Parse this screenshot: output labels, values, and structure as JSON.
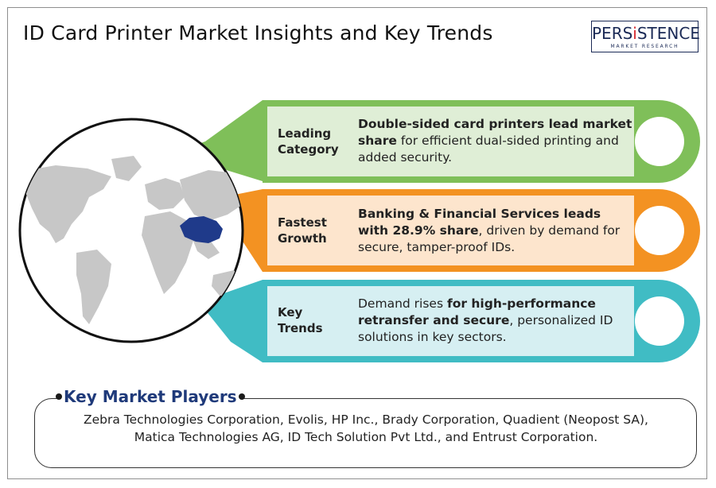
{
  "title": "ID Card Printer Market Insights and Key Trends",
  "logo": {
    "word_part1": "PERS",
    "word_accent": "i",
    "word_part2": "STENCE",
    "subtitle": "MARKET RESEARCH"
  },
  "colors": {
    "green": "#7fbf59",
    "green_light": "#dfeed6",
    "orange": "#f39222",
    "orange_light": "#fde5cd",
    "teal": "#40bcc4",
    "teal_light": "#d6eff2",
    "china_highlight": "#1f3a8a",
    "map_gray": "#c7c7c7",
    "players_title": "#1f3a7a"
  },
  "cards": [
    {
      "category_line1": "Leading",
      "category_line2": "Category",
      "bold": "Double-sided card printers lead market share",
      "text": " for efficient dual-sided printing and added security."
    },
    {
      "category_line1": "Fastest",
      "category_line2": "Growth",
      "bold": "Banking & Financial Services leads with 28.9% share",
      "text": ", driven by demand for secure, tamper-proof IDs."
    },
    {
      "category_line1": "Key",
      "category_line2": "Trends",
      "pre": "Demand rises ",
      "bold": "for high-performance retransfer and secure",
      "text": ", personalized ID solutions in key sectors."
    }
  ],
  "players": {
    "title": "Key Market Players",
    "text": "Zebra Technologies Corporation, Evolis, HP Inc., Brady Corporation, Quadient (Neopost SA), Matica Technologies AG, ID Tech Solution Pvt Ltd., and Entrust Corporation."
  }
}
